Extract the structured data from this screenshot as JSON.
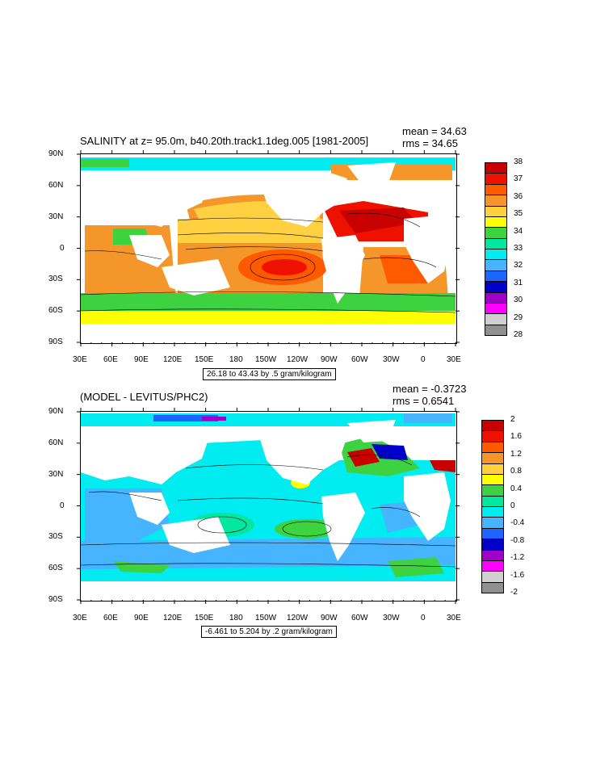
{
  "panels": [
    {
      "title": "SALINITY at z=  95.0m, b40.20th.track1.1deg.005 [1981-2005]",
      "mean": "mean = 34.63",
      "rms": "rms = 34.65",
      "info": "26.18 to 43.43 by .5 gram/kilogram",
      "lon_labels": [
        "30E",
        "60E",
        "90E",
        "120E",
        "150E",
        "180",
        "150W",
        "120W",
        "90W",
        "60W",
        "30W",
        "0",
        "30E"
      ],
      "lat_labels": [
        "90N",
        "60N",
        "30N",
        "0",
        "30S",
        "60S",
        "90S"
      ],
      "colorbar": {
        "labels": [
          "38",
          "37",
          "36",
          "35",
          "34",
          "33",
          "32",
          "31",
          "30",
          "29",
          "28"
        ],
        "colors": [
          "#c80000",
          "#ee1100",
          "#ff5a00",
          "#f5962a",
          "#ffd040",
          "#ffff00",
          "#3cd240",
          "#00e8a0",
          "#00ecf0",
          "#46b4ff",
          "#1e64ff",
          "#0000c8",
          "#a000c8",
          "#ff00ff",
          "#d0d0d0",
          "#909090"
        ]
      }
    },
    {
      "title": "(MODEL - LEVITUS/PHC2)",
      "mean": "mean = -0.3723",
      "rms": "rms = 0.6541",
      "info": "-6.461 to 5.204 by .2 gram/kilogram",
      "lon_labels": [
        "30E",
        "60E",
        "90E",
        "120E",
        "150E",
        "180",
        "150W",
        "120W",
        "90W",
        "60W",
        "30W",
        "0",
        "30E"
      ],
      "lat_labels": [
        "90N",
        "60N",
        "30N",
        "0",
        "30S",
        "60S",
        "90S"
      ],
      "colorbar": {
        "labels": [
          "2",
          "1.6",
          "1.2",
          "0.8",
          "0.4",
          "0",
          "-0.4",
          "-0.8",
          "-1.2",
          "-1.6",
          "-2"
        ],
        "colors": [
          "#c80000",
          "#ee1100",
          "#ff5a00",
          "#f5962a",
          "#ffd040",
          "#ffff00",
          "#3cd240",
          "#00e8a0",
          "#00ecf0",
          "#46b4ff",
          "#1e64ff",
          "#0000c8",
          "#a000c8",
          "#ff00ff",
          "#d0d0d0",
          "#909090"
        ]
      }
    }
  ]
}
